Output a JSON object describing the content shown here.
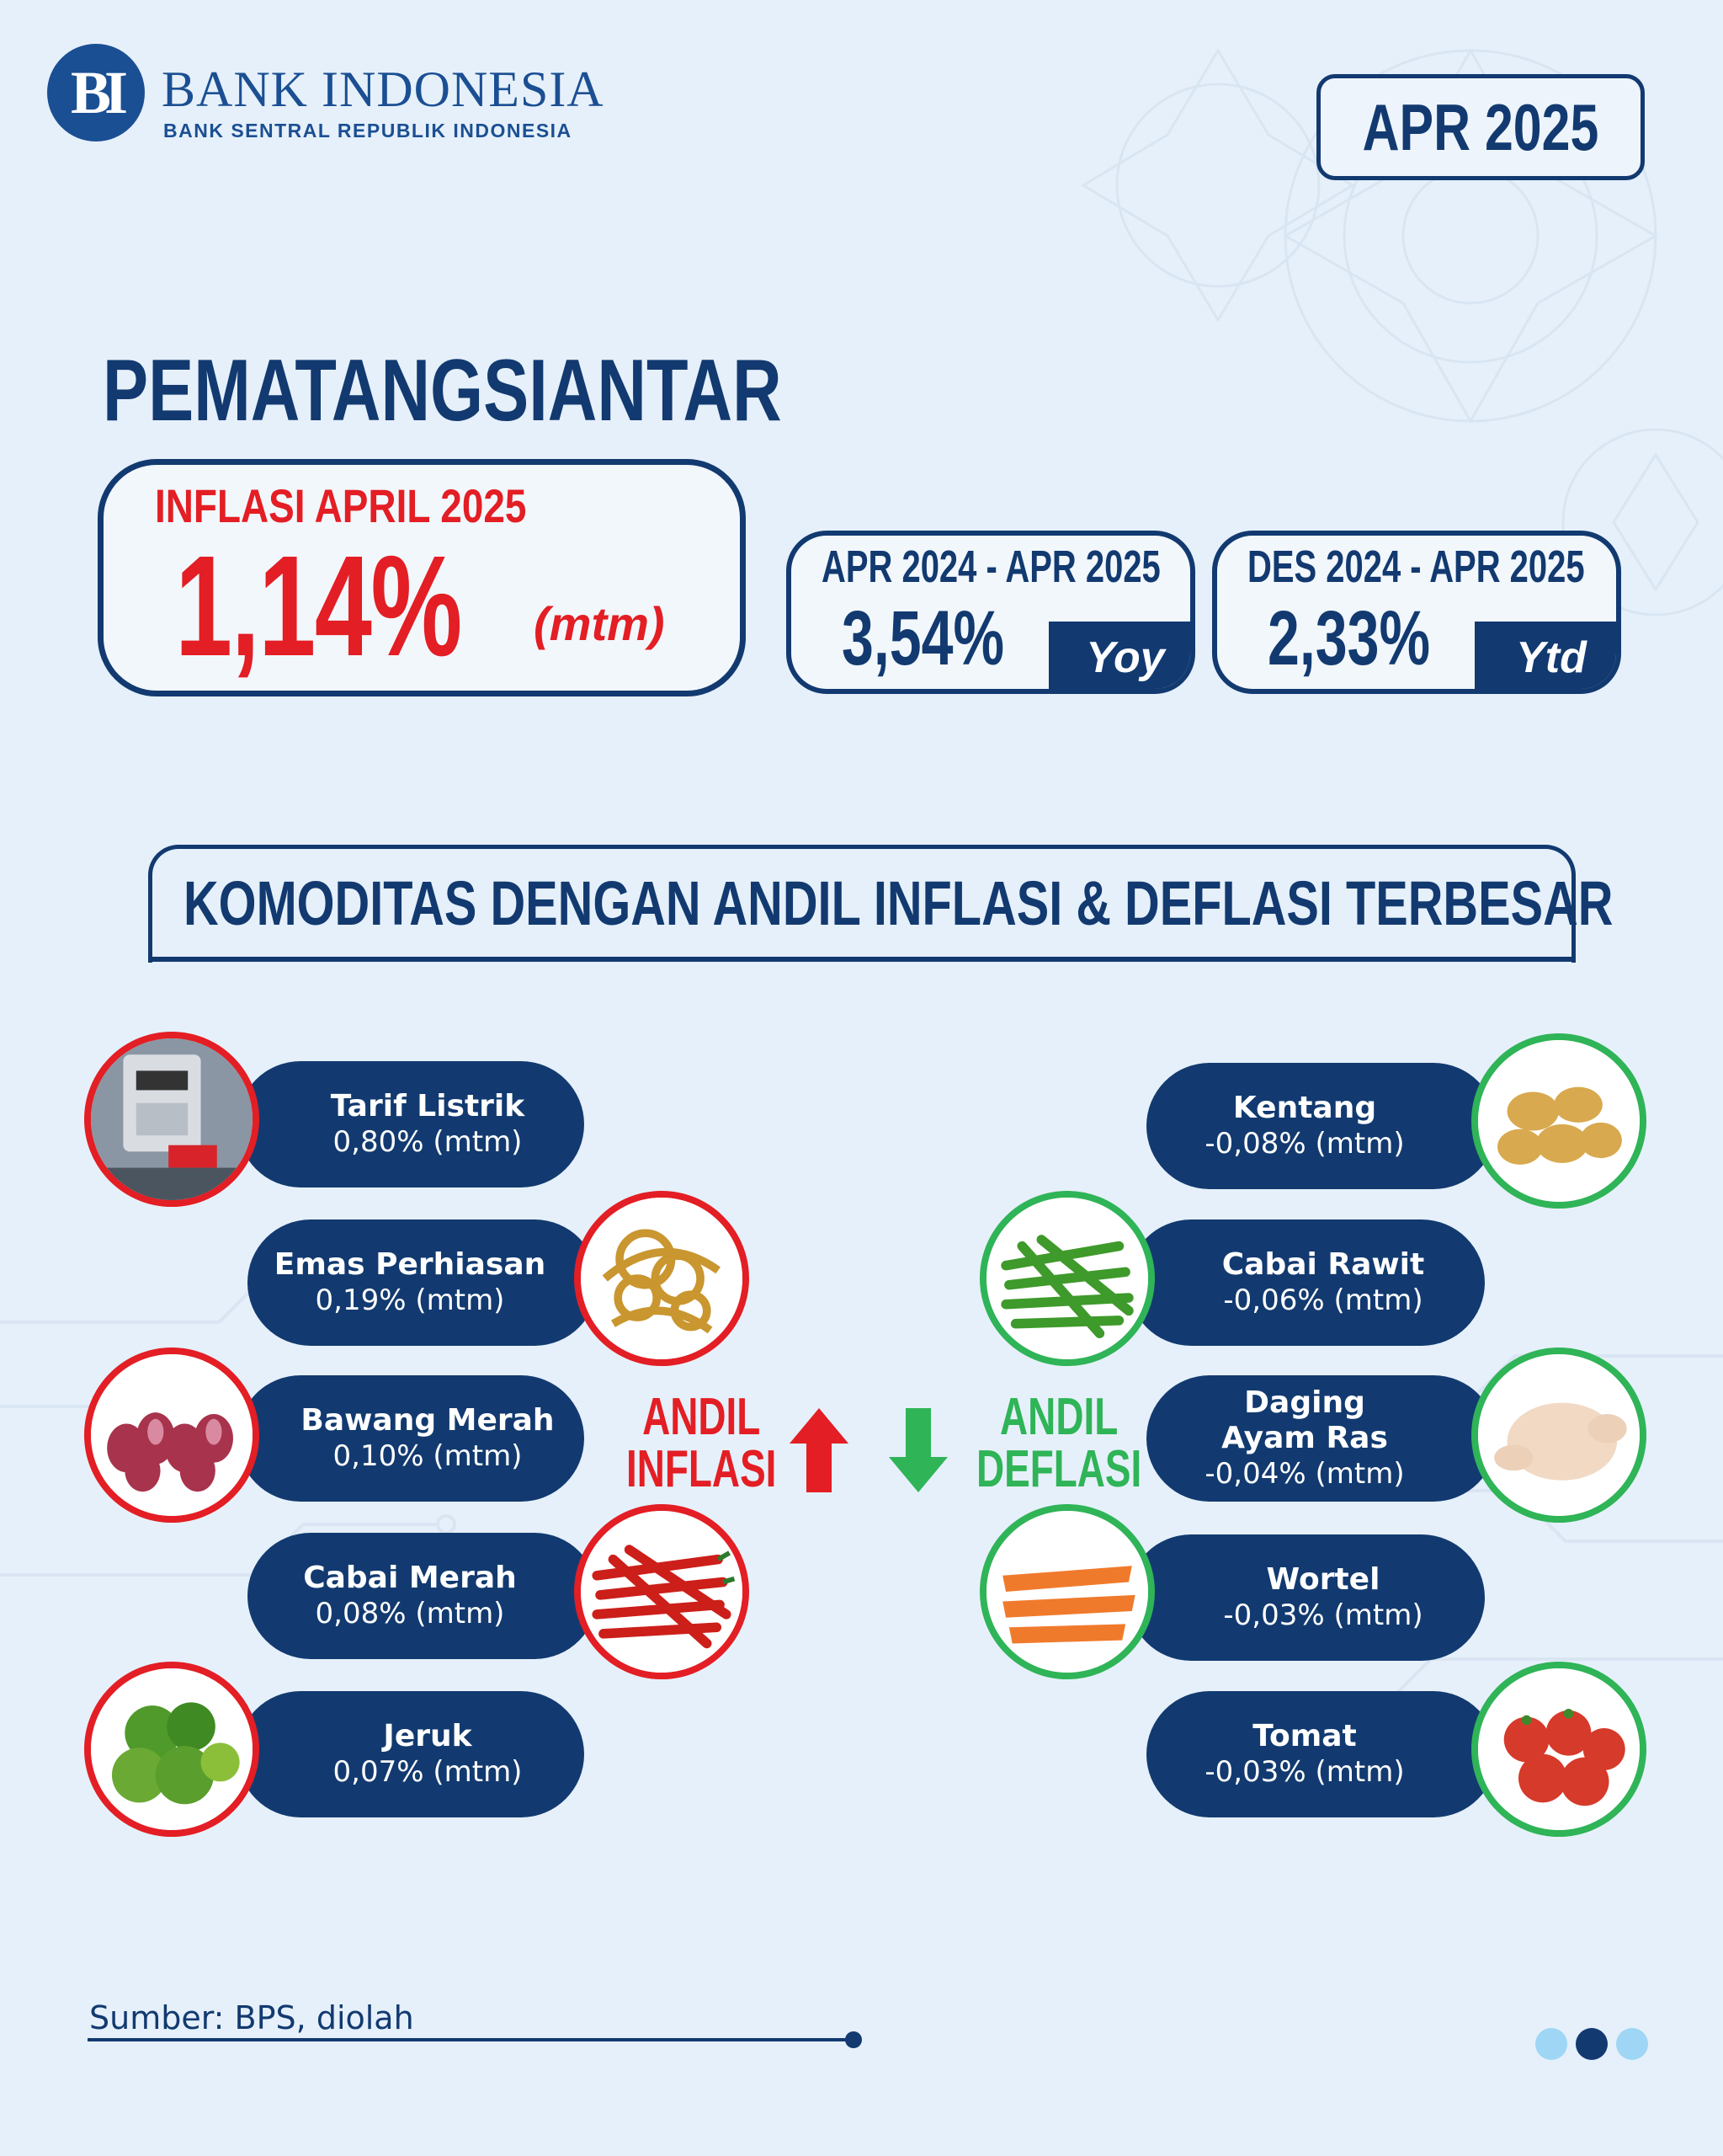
{
  "header": {
    "logo_text": "BI",
    "bank_name": "BANK INDONESIA",
    "bank_subtitle": "BANK SENTRAL REPUBLIK INDONESIA",
    "period": "APR 2025"
  },
  "city": "PEMATANGSIANTAR",
  "main": {
    "label": "INFLASI APRIL 2025",
    "value": "1,14%",
    "unit": "(mtm)"
  },
  "yoy": {
    "period": "APR 2024 - APR 2025",
    "value": "3,54%",
    "tag": "Yoy"
  },
  "ytd": {
    "period": "DES 2024 - APR 2025",
    "value": "2,33%",
    "tag": "Ytd"
  },
  "section_title": "KOMODITAS DENGAN ANDIL INFLASI & DEFLASI TERBESAR",
  "andil_inflasi": {
    "line1": "ANDIL",
    "line2": "INFLASI",
    "color": "#e31e24"
  },
  "andil_deflasi": {
    "line1": "ANDIL",
    "line2": "DEFLASI",
    "color": "#2fb457"
  },
  "inflasi_items": [
    {
      "name": "Tarif Listrik",
      "value": "0,80% (mtm)",
      "icon": "electric-meter-photo"
    },
    {
      "name": "Emas Perhiasan",
      "value": "0,19% (mtm)",
      "icon": "gold-jewelry-photo"
    },
    {
      "name": "Bawang Merah",
      "value": "0,10% (mtm)",
      "icon": "shallot-photo"
    },
    {
      "name": "Cabai Merah",
      "value": "0,08% (mtm)",
      "icon": "red-chili-photo"
    },
    {
      "name": "Jeruk",
      "value": "0,07% (mtm)",
      "icon": "orange-photo"
    }
  ],
  "deflasi_items": [
    {
      "name": "Kentang",
      "value": "-0,08% (mtm)",
      "icon": "potato-photo"
    },
    {
      "name": "Cabai Rawit",
      "value": "-0,06% (mtm)",
      "icon": "green-chili-photo"
    },
    {
      "name": "Daging Ayam Ras",
      "name_line1": "Daging",
      "name_line2": "Ayam Ras",
      "value": "-0,04% (mtm)",
      "icon": "chicken-photo"
    },
    {
      "name": "Wortel",
      "value": "-0,03% (mtm)",
      "icon": "carrot-photo"
    },
    {
      "name": "Tomat",
      "value": "-0,03% (mtm)",
      "icon": "tomato-photo"
    }
  ],
  "source": "Sumber: BPS, diolah",
  "colors": {
    "navy": "#123a70",
    "red": "#e31e24",
    "green": "#2fb457",
    "background": "#e6f0fa"
  }
}
